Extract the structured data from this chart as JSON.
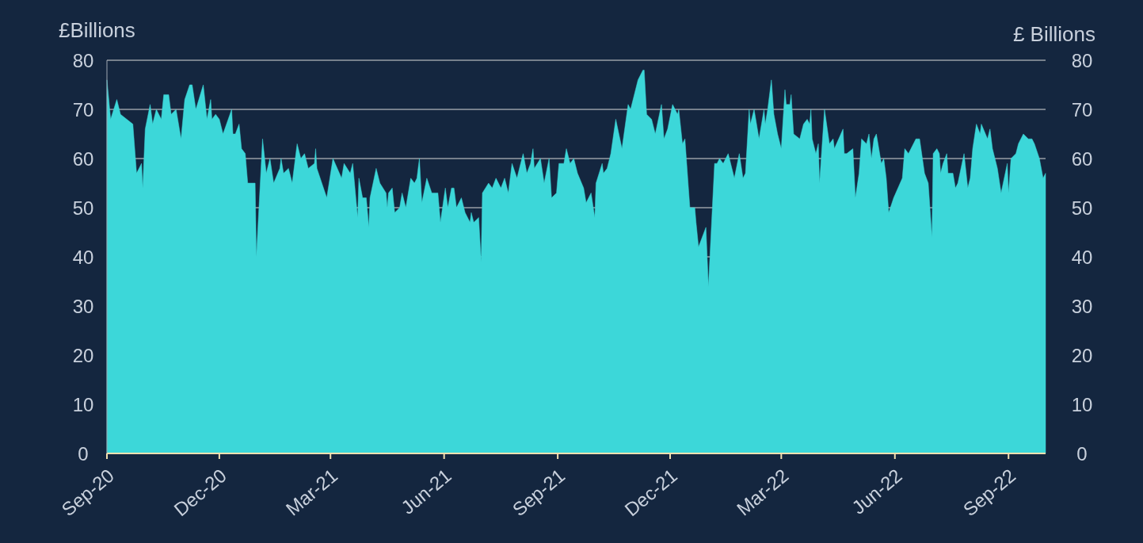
{
  "chart_data": {
    "type": "area",
    "ylabel": "£Billions",
    "y2label": "£ Billions",
    "ylim": [
      0,
      80
    ],
    "yticks": [
      0,
      10,
      20,
      30,
      40,
      50,
      60,
      70,
      80
    ],
    "y2lim": [
      0,
      80
    ],
    "y2ticks": [
      0,
      10,
      20,
      30,
      40,
      50,
      60,
      70,
      80
    ],
    "grid": "y",
    "xlim": [
      "2020-09-01",
      "2022-10-01"
    ],
    "xticks": [
      {
        "value": "2020-09-01",
        "label": "Sep-20"
      },
      {
        "value": "2020-12-01",
        "label": "Dec-20"
      },
      {
        "value": "2021-03-01",
        "label": "Mar-21"
      },
      {
        "value": "2021-06-01",
        "label": "Jun-21"
      },
      {
        "value": "2021-09-01",
        "label": "Sep-21"
      },
      {
        "value": "2021-12-01",
        "label": "Dec-21"
      },
      {
        "value": "2022-03-01",
        "label": "Mar-22"
      },
      {
        "value": "2022-06-01",
        "label": "Jun-22"
      },
      {
        "value": "2022-09-01",
        "label": "Sep-22"
      }
    ],
    "series": [
      {
        "color": "#3cd7d9",
        "x": [
          "2020-09-01",
          "2020-09-04",
          "2020-09-09",
          "2020-09-12",
          "2020-09-22",
          "2020-09-25",
          "2020-09-29",
          "2020-09-30",
          "2020-10-02",
          "2020-10-06",
          "2020-10-08",
          "2020-10-11",
          "2020-10-15",
          "2020-10-17",
          "2020-10-21",
          "2020-10-23",
          "2020-10-27",
          "2020-10-31",
          "2020-11-03",
          "2020-11-07",
          "2020-11-09",
          "2020-11-12",
          "2020-11-18",
          "2020-11-21",
          "2020-11-24",
          "2020-11-25",
          "2020-11-28",
          "2020-12-01",
          "2020-12-04",
          "2020-12-11",
          "2020-12-12",
          "2020-12-14",
          "2020-12-17",
          "2020-12-19",
          "2020-12-22",
          "2020-12-24",
          "2020-12-30",
          "2020-12-31",
          "2021-01-05",
          "2021-01-08",
          "2021-01-11",
          "2021-01-14",
          "2021-01-19",
          "2021-01-20",
          "2021-01-22",
          "2021-01-26",
          "2021-01-29",
          "2021-02-02",
          "2021-02-05",
          "2021-02-08",
          "2021-02-11",
          "2021-02-16",
          "2021-02-17",
          "2021-02-18",
          "2021-02-26",
          "2021-03-03",
          "2021-03-10",
          "2021-03-12",
          "2021-03-17",
          "2021-03-19",
          "2021-03-23",
          "2021-03-24",
          "2021-03-27",
          "2021-03-30",
          "2021-04-01",
          "2021-04-02",
          "2021-04-07",
          "2021-04-10",
          "2021-04-15",
          "2021-04-16",
          "2021-04-17",
          "2021-04-20",
          "2021-04-22",
          "2021-04-26",
          "2021-04-28",
          "2021-05-01",
          "2021-05-05",
          "2021-05-08",
          "2021-05-10",
          "2021-05-12",
          "2021-05-14",
          "2021-05-18",
          "2021-05-22",
          "2021-05-25",
          "2021-05-27",
          "2021-05-29",
          "2021-06-02",
          "2021-06-04",
          "2021-06-07",
          "2021-06-09",
          "2021-06-11",
          "2021-06-15",
          "2021-06-18",
          "2021-06-22",
          "2021-06-23",
          "2021-06-25",
          "2021-06-29",
          "2021-07-01",
          "2021-07-02",
          "2021-07-07",
          "2021-07-10",
          "2021-07-13",
          "2021-07-17",
          "2021-07-20",
          "2021-07-23",
          "2021-07-26",
          "2021-07-30",
          "2021-08-04",
          "2021-08-07",
          "2021-08-10",
          "2021-08-12",
          "2021-08-13",
          "2021-08-18",
          "2021-08-21",
          "2021-08-25",
          "2021-08-27",
          "2021-08-31",
          "2021-09-02",
          "2021-09-06",
          "2021-09-08",
          "2021-09-11",
          "2021-09-14",
          "2021-09-17",
          "2021-09-22",
          "2021-09-24",
          "2021-09-28",
          "2021-10-01",
          "2021-10-02",
          "2021-10-07",
          "2021-10-08",
          "2021-10-11",
          "2021-10-14",
          "2021-10-18",
          "2021-10-23",
          "2021-10-28",
          "2021-10-30",
          "2021-11-03",
          "2021-11-05",
          "2021-11-09",
          "2021-11-10",
          "2021-11-12",
          "2021-11-16",
          "2021-11-19",
          "2021-11-24",
          "2021-11-26",
          "2021-11-29",
          "2021-12-03",
          "2021-12-07",
          "2021-12-08",
          "2021-12-11",
          "2021-12-13",
          "2021-12-17",
          "2021-12-21",
          "2021-12-22",
          "2021-12-24",
          "2021-12-30",
          "2022-01-01",
          "2022-01-06",
          "2022-01-08",
          "2022-01-10",
          "2022-01-13",
          "2022-01-17",
          "2022-01-22",
          "2022-01-26",
          "2022-01-29",
          "2022-01-31",
          "2022-02-03",
          "2022-02-04",
          "2022-02-07",
          "2022-02-11",
          "2022-02-15",
          "2022-02-16",
          "2022-02-18",
          "2022-02-21",
          "2022-02-23",
          "2022-02-26",
          "2022-03-01",
          "2022-03-04",
          "2022-03-05",
          "2022-03-08",
          "2022-03-09",
          "2022-03-11",
          "2022-03-16",
          "2022-03-19",
          "2022-03-22",
          "2022-03-24",
          "2022-03-25",
          "2022-03-26",
          "2022-03-29",
          "2022-03-31",
          "2022-04-01",
          "2022-04-05",
          "2022-04-09",
          "2022-04-12",
          "2022-04-13",
          "2022-04-20",
          "2022-04-21",
          "2022-04-23",
          "2022-04-28",
          "2022-04-30",
          "2022-05-03",
          "2022-05-05",
          "2022-05-09",
          "2022-05-11",
          "2022-05-13",
          "2022-05-15",
          "2022-05-17",
          "2022-05-21",
          "2022-05-23",
          "2022-05-25",
          "2022-05-27",
          "2022-05-31",
          "2022-06-07",
          "2022-06-09",
          "2022-06-12",
          "2022-06-18",
          "2022-06-21",
          "2022-06-25",
          "2022-06-28",
          "2022-07-01",
          "2022-07-02",
          "2022-07-05",
          "2022-07-07",
          "2022-07-08",
          "2022-07-10",
          "2022-07-13",
          "2022-07-14",
          "2022-07-18",
          "2022-07-20",
          "2022-07-22",
          "2022-07-27",
          "2022-07-30",
          "2022-08-01",
          "2022-08-03",
          "2022-08-06",
          "2022-08-09",
          "2022-08-10",
          "2022-08-15",
          "2022-08-17",
          "2022-08-19",
          "2022-08-23",
          "2022-08-26",
          "2022-08-31",
          "2022-09-01",
          "2022-09-03",
          "2022-09-07",
          "2022-09-09",
          "2022-09-13",
          "2022-09-17",
          "2022-09-20",
          "2022-09-22",
          "2022-09-26",
          "2022-09-29",
          "2022-10-01"
        ],
        "values": [
          76,
          68,
          72,
          69,
          67,
          57,
          59,
          54,
          66,
          71,
          67,
          70,
          68,
          73,
          73,
          69,
          70,
          64,
          72,
          75,
          75,
          70,
          75,
          68,
          72,
          68,
          69,
          68,
          65,
          70,
          65,
          65,
          67,
          62,
          61,
          55,
          55,
          40,
          64,
          57,
          60,
          55,
          58,
          60,
          57,
          58,
          55,
          63,
          60,
          61,
          58,
          59,
          62,
          58,
          52,
          60,
          56,
          59,
          57,
          59,
          48,
          56,
          52,
          52,
          46,
          52,
          58,
          55,
          53,
          50,
          53,
          54,
          49,
          50,
          53,
          50,
          56,
          55,
          56,
          60,
          51,
          56,
          53,
          53,
          53,
          47,
          54,
          50,
          54,
          54,
          50,
          52,
          49,
          47,
          49,
          47,
          48,
          39,
          53,
          55,
          54,
          56,
          54,
          56,
          53,
          59,
          56,
          61,
          57,
          59,
          62,
          58,
          60,
          55,
          60,
          52,
          53,
          59,
          59,
          62,
          59,
          60,
          57,
          54,
          51,
          53,
          48,
          55,
          59,
          57,
          58,
          61,
          68,
          62,
          71,
          70,
          74,
          76,
          78,
          78,
          69,
          68,
          65,
          71,
          64,
          66,
          71,
          69,
          70,
          63,
          64,
          50,
          50,
          47,
          42,
          46,
          34,
          59,
          59,
          60,
          59,
          61,
          56,
          61,
          56,
          57,
          70,
          67,
          70,
          64,
          70,
          67,
          70,
          76,
          69,
          65,
          62,
          74,
          71,
          71,
          73,
          65,
          64,
          67,
          68,
          67,
          70,
          64,
          61,
          63,
          55,
          70,
          63,
          64,
          62,
          66,
          61,
          61,
          62,
          52,
          57,
          64,
          63,
          65,
          60,
          64,
          65,
          59,
          60,
          56,
          49,
          52,
          56,
          62,
          61,
          64,
          64,
          57,
          55,
          44,
          61,
          62,
          61,
          57,
          59,
          61,
          57,
          57,
          54,
          55,
          61,
          54,
          56,
          62,
          67,
          65,
          67,
          64,
          66,
          62,
          58,
          53,
          59,
          53,
          60,
          61,
          63,
          65,
          64,
          64,
          63,
          60,
          56,
          57
        ]
      }
    ]
  }
}
